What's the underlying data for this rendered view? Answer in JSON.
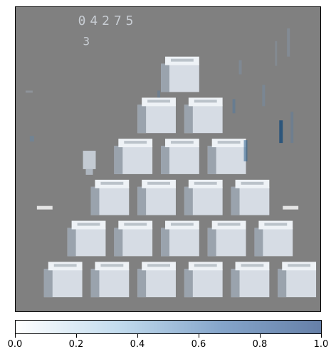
{
  "game": {
    "score": "04275",
    "lives": "3",
    "pyramid_rows": [
      1,
      2,
      3,
      4,
      5,
      6
    ],
    "colors": {
      "background": "#808080",
      "cube_top": "#eef2f6",
      "cube_face": "#d6dce4",
      "cube_shadow": "#9aa3ad",
      "disc": "#e4e4e4",
      "hud": "#c8cdd3",
      "attention": "#1f4f7a"
    }
  },
  "colorbar": {
    "min": 0.0,
    "max": 1.0,
    "ticks": [
      "0.0",
      "0.2",
      "0.4",
      "0.6",
      "0.8",
      "1.0"
    ],
    "colors": [
      "#ffffff",
      "#c3dcee",
      "#86a6cb",
      "#6680a8"
    ]
  }
}
